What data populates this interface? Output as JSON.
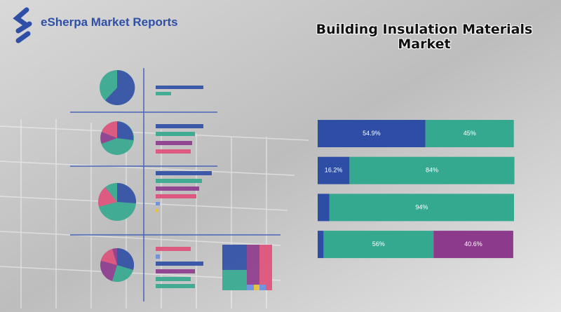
{
  "header": {
    "brand": "eSherpa Market Reports"
  },
  "chart_data": {
    "type": "stacked-bar",
    "orientation": "horizontal",
    "title": "Building Insulation Materials Market",
    "categories": [
      null,
      null,
      null,
      null
    ],
    "xlim": [
      0,
      100
    ],
    "series": [
      {
        "color": "#2e4ea6",
        "values": [
          54.9,
          16.2,
          6,
          3
        ],
        "value_labels": [
          "54.9%",
          "16.2%",
          null,
          null
        ]
      },
      {
        "color": "#35a98f",
        "values": [
          45,
          84,
          94,
          56
        ],
        "value_labels": [
          "45%",
          "84%",
          "94%",
          "56%"
        ]
      },
      {
        "color": "#8c3a8c",
        "values": [
          null,
          null,
          null,
          40.6
        ],
        "value_labels": [
          null,
          null,
          null,
          "40.6%"
        ]
      }
    ]
  }
}
